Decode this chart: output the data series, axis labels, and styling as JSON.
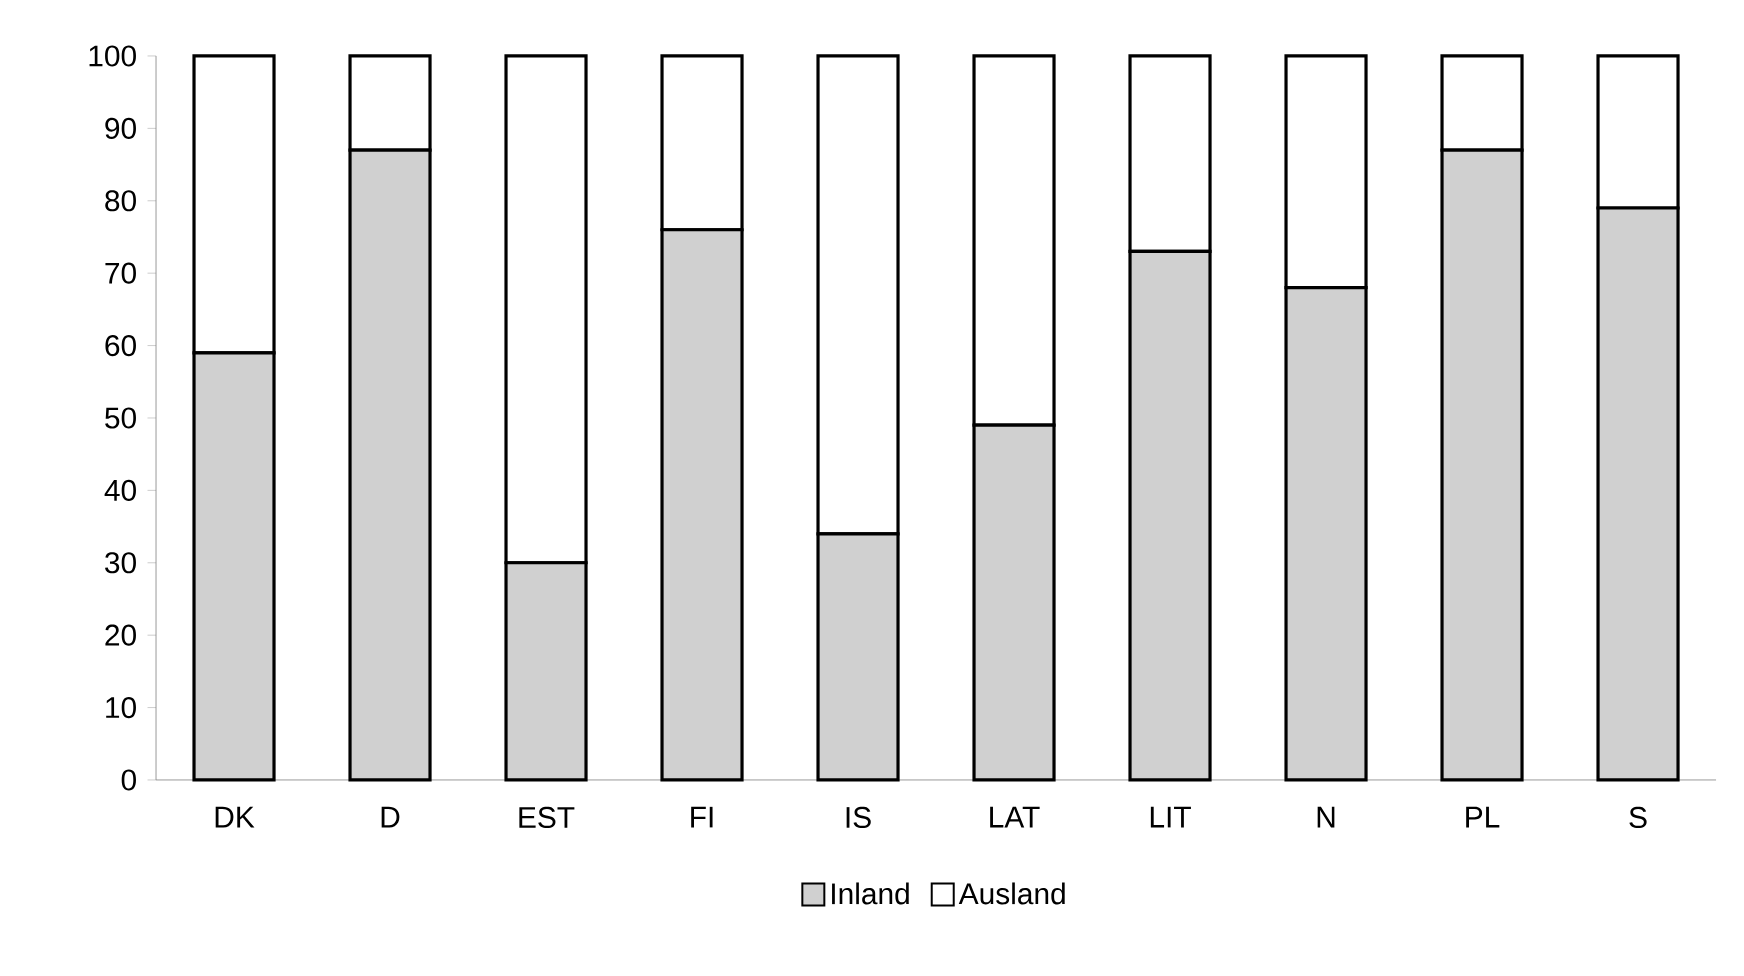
{
  "chart_data": {
    "type": "bar",
    "stacked": true,
    "categories": [
      "DK",
      "D",
      "EST",
      "FI",
      "IS",
      "LAT",
      "LIT",
      "N",
      "PL",
      "S"
    ],
    "series": [
      {
        "name": "Inland",
        "color": "#d0d0d0",
        "values": [
          59,
          87,
          30,
          76,
          34,
          49,
          73,
          68,
          87,
          79
        ]
      },
      {
        "name": "Ausland",
        "color": "#ffffff",
        "values": [
          41,
          13,
          70,
          24,
          66,
          51,
          27,
          32,
          13,
          21
        ]
      }
    ],
    "ylim": [
      0,
      100
    ],
    "yticks": [
      0,
      10,
      20,
      30,
      40,
      50,
      60,
      70,
      80,
      90,
      100
    ],
    "grid": false,
    "legend": "bottom"
  }
}
